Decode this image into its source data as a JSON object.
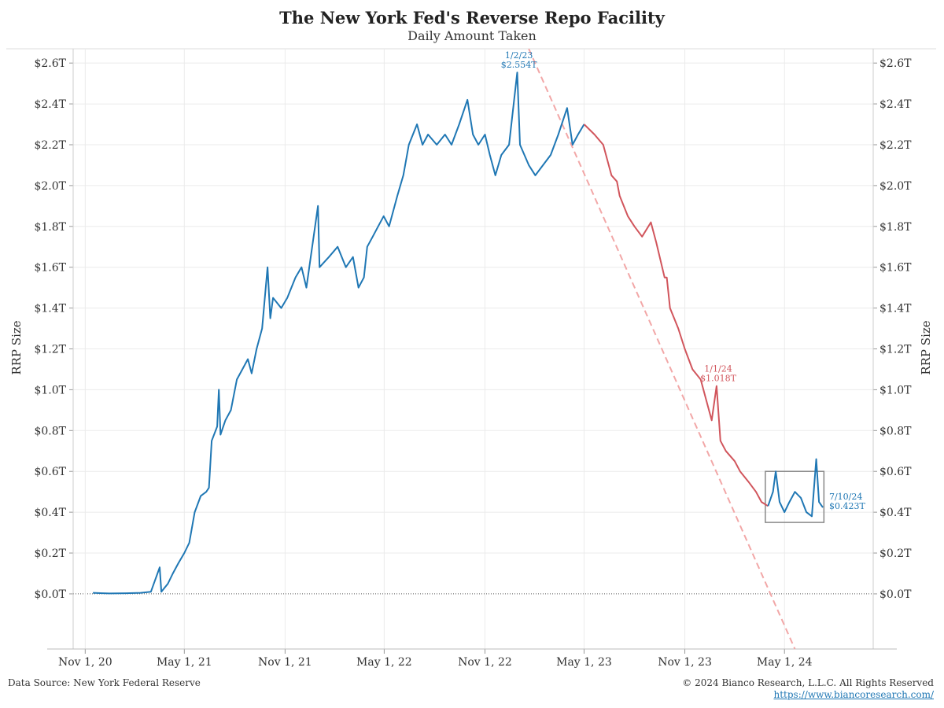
{
  "title": "The New York Fed's Reverse Repo Facility",
  "subtitle": "Daily Amount Taken",
  "footer": {
    "source": "Data Source: New York Federal Reserve",
    "copyright": "© 2024 Bianco Research, L.L.C. All Rights Reserved",
    "url": "https://www.biancoresearch.com/"
  },
  "colors": {
    "blue": "#1f77b4",
    "red": "#d1555c",
    "trend": "#f2a7a7",
    "grid": "#ebebeb",
    "box": "#888888"
  },
  "chart_data": {
    "type": "line",
    "title": "The New York Fed's Reverse Repo Facility",
    "subtitle": "Daily Amount Taken",
    "ylabel": "RRP Size",
    "ylabel_right": "RRP Size",
    "ylim": [
      -0.27,
      2.67
    ],
    "xlim": [
      "2020-10-10",
      "2024-10-10"
    ],
    "y_ticks": [
      {
        "value": 0.0,
        "label": "$0.0T"
      },
      {
        "value": 0.2,
        "label": "$0.2T"
      },
      {
        "value": 0.4,
        "label": "$0.4T"
      },
      {
        "value": 0.6,
        "label": "$0.6T"
      },
      {
        "value": 0.8,
        "label": "$0.8T"
      },
      {
        "value": 1.0,
        "label": "$1.0T"
      },
      {
        "value": 1.2,
        "label": "$1.2T"
      },
      {
        "value": 1.4,
        "label": "$1.4T"
      },
      {
        "value": 1.6,
        "label": "$1.6T"
      },
      {
        "value": 1.8,
        "label": "$1.8T"
      },
      {
        "value": 2.0,
        "label": "$2.0T"
      },
      {
        "value": 2.2,
        "label": "$2.2T"
      },
      {
        "value": 2.4,
        "label": "$2.4T"
      },
      {
        "value": 2.6,
        "label": "$2.6T"
      }
    ],
    "x_ticks": [
      {
        "date": "2020-11-01",
        "label": "Nov 1, 20"
      },
      {
        "date": "2021-05-01",
        "label": "May 1, 21"
      },
      {
        "date": "2021-11-01",
        "label": "Nov 1, 21"
      },
      {
        "date": "2022-05-01",
        "label": "May 1, 22"
      },
      {
        "date": "2022-11-01",
        "label": "Nov 1, 22"
      },
      {
        "date": "2023-05-01",
        "label": "May 1, 23"
      },
      {
        "date": "2023-11-01",
        "label": "Nov 1, 23"
      },
      {
        "date": "2024-05-01",
        "label": "May 1, 24"
      }
    ],
    "series": [
      {
        "color": "#1f77b4",
        "points": [
          [
            "2020-11-15",
            0.005
          ],
          [
            "2020-12-15",
            0.002
          ],
          [
            "2021-01-15",
            0.003
          ],
          [
            "2021-02-10",
            0.005
          ],
          [
            "2021-03-01",
            0.01
          ],
          [
            "2021-03-17",
            0.13
          ],
          [
            "2021-03-20",
            0.01
          ],
          [
            "2021-04-01",
            0.05
          ],
          [
            "2021-04-10",
            0.1
          ],
          [
            "2021-04-20",
            0.15
          ],
          [
            "2021-05-01",
            0.2
          ],
          [
            "2021-05-10",
            0.25
          ],
          [
            "2021-05-20",
            0.4
          ],
          [
            "2021-05-31",
            0.48
          ],
          [
            "2021-06-10",
            0.5
          ],
          [
            "2021-06-15",
            0.52
          ],
          [
            "2021-06-20",
            0.75
          ],
          [
            "2021-06-30",
            0.82
          ],
          [
            "2021-07-03",
            1.0
          ],
          [
            "2021-07-06",
            0.78
          ],
          [
            "2021-07-15",
            0.85
          ],
          [
            "2021-07-25",
            0.9
          ],
          [
            "2021-08-05",
            1.05
          ],
          [
            "2021-08-15",
            1.1
          ],
          [
            "2021-08-25",
            1.15
          ],
          [
            "2021-09-01",
            1.08
          ],
          [
            "2021-09-10",
            1.2
          ],
          [
            "2021-09-20",
            1.3
          ],
          [
            "2021-09-30",
            1.6
          ],
          [
            "2021-10-05",
            1.35
          ],
          [
            "2021-10-10",
            1.45
          ],
          [
            "2021-10-25",
            1.4
          ],
          [
            "2021-11-05",
            1.45
          ],
          [
            "2021-11-20",
            1.55
          ],
          [
            "2021-12-01",
            1.6
          ],
          [
            "2021-12-10",
            1.5
          ],
          [
            "2021-12-31",
            1.9
          ],
          [
            "2022-01-03",
            1.6
          ],
          [
            "2022-01-20",
            1.65
          ],
          [
            "2022-02-05",
            1.7
          ],
          [
            "2022-02-20",
            1.6
          ],
          [
            "2022-03-05",
            1.65
          ],
          [
            "2022-03-15",
            1.5
          ],
          [
            "2022-03-25",
            1.55
          ],
          [
            "2022-03-31",
            1.7
          ],
          [
            "2022-04-10",
            1.75
          ],
          [
            "2022-04-20",
            1.8
          ],
          [
            "2022-04-30",
            1.85
          ],
          [
            "2022-05-10",
            1.8
          ],
          [
            "2022-05-25",
            1.95
          ],
          [
            "2022-06-05",
            2.05
          ],
          [
            "2022-06-15",
            2.2
          ],
          [
            "2022-06-30",
            2.3
          ],
          [
            "2022-07-10",
            2.2
          ],
          [
            "2022-07-20",
            2.25
          ],
          [
            "2022-08-05",
            2.2
          ],
          [
            "2022-08-20",
            2.25
          ],
          [
            "2022-09-01",
            2.2
          ],
          [
            "2022-09-15",
            2.3
          ],
          [
            "2022-09-30",
            2.42
          ],
          [
            "2022-10-10",
            2.25
          ],
          [
            "2022-10-20",
            2.2
          ],
          [
            "2022-11-01",
            2.25
          ],
          [
            "2022-11-10",
            2.15
          ],
          [
            "2022-11-20",
            2.05
          ],
          [
            "2022-12-01",
            2.15
          ],
          [
            "2022-12-15",
            2.2
          ],
          [
            "2022-12-30",
            2.554
          ],
          [
            "2023-01-04",
            2.2
          ],
          [
            "2023-01-20",
            2.1
          ],
          [
            "2023-02-01",
            2.05
          ],
          [
            "2023-02-15",
            2.1
          ],
          [
            "2023-03-01",
            2.15
          ],
          [
            "2023-03-15",
            2.25
          ],
          [
            "2023-03-31",
            2.38
          ],
          [
            "2023-04-10",
            2.2
          ],
          [
            "2023-04-20",
            2.25
          ],
          [
            "2023-05-01",
            2.3
          ]
        ]
      },
      {
        "color": "#d1555c",
        "points": [
          [
            "2023-05-01",
            2.3
          ],
          [
            "2023-05-20",
            2.25
          ],
          [
            "2023-06-05",
            2.2
          ],
          [
            "2023-06-20",
            2.05
          ],
          [
            "2023-06-30",
            2.02
          ],
          [
            "2023-07-05",
            1.95
          ],
          [
            "2023-07-20",
            1.85
          ],
          [
            "2023-08-01",
            1.8
          ],
          [
            "2023-08-15",
            1.75
          ],
          [
            "2023-08-31",
            1.82
          ],
          [
            "2023-09-10",
            1.72
          ],
          [
            "2023-09-25",
            1.55
          ],
          [
            "2023-09-29",
            1.55
          ],
          [
            "2023-10-05",
            1.4
          ],
          [
            "2023-10-20",
            1.3
          ],
          [
            "2023-11-01",
            1.2
          ],
          [
            "2023-11-15",
            1.1
          ],
          [
            "2023-11-30",
            1.05
          ],
          [
            "2023-12-10",
            0.95
          ],
          [
            "2023-12-20",
            0.85
          ],
          [
            "2023-12-29",
            1.018
          ],
          [
            "2024-01-05",
            0.75
          ],
          [
            "2024-01-15",
            0.7
          ],
          [
            "2024-01-31",
            0.65
          ],
          [
            "2024-02-10",
            0.6
          ],
          [
            "2024-02-25",
            0.55
          ],
          [
            "2024-03-10",
            0.5
          ],
          [
            "2024-03-20",
            0.45
          ],
          [
            "2024-04-01",
            0.43
          ]
        ]
      },
      {
        "color": "#1f77b4",
        "points": [
          [
            "2024-04-01",
            0.43
          ],
          [
            "2024-04-10",
            0.5
          ],
          [
            "2024-04-15",
            0.6
          ],
          [
            "2024-04-22",
            0.45
          ],
          [
            "2024-05-01",
            0.4
          ],
          [
            "2024-05-10",
            0.45
          ],
          [
            "2024-05-20",
            0.5
          ],
          [
            "2024-05-31",
            0.47
          ],
          [
            "2024-06-10",
            0.4
          ],
          [
            "2024-06-20",
            0.38
          ],
          [
            "2024-06-28",
            0.66
          ],
          [
            "2024-07-03",
            0.45
          ],
          [
            "2024-07-10",
            0.423
          ]
        ]
      }
    ],
    "trendline": {
      "from": [
        "2023-01-20",
        2.67
      ],
      "to": [
        "2024-05-20",
        -0.27
      ]
    },
    "highlight_box": {
      "x": [
        "2024-03-27",
        "2024-07-12"
      ],
      "y": [
        0.35,
        0.6
      ]
    },
    "annotations": [
      {
        "date": "1/2/23",
        "value": "$2.554T",
        "color": "#1f77b4",
        "x": "2023-01-02",
        "y": 2.554
      },
      {
        "date": "1/1/24",
        "value": "$1.018T",
        "color": "#d1555c",
        "x": "2024-01-01",
        "y": 1.018
      },
      {
        "date": "7/10/24",
        "value": "$0.423T",
        "color": "#1f77b4",
        "x": "2024-07-10",
        "y": 0.423
      }
    ]
  }
}
